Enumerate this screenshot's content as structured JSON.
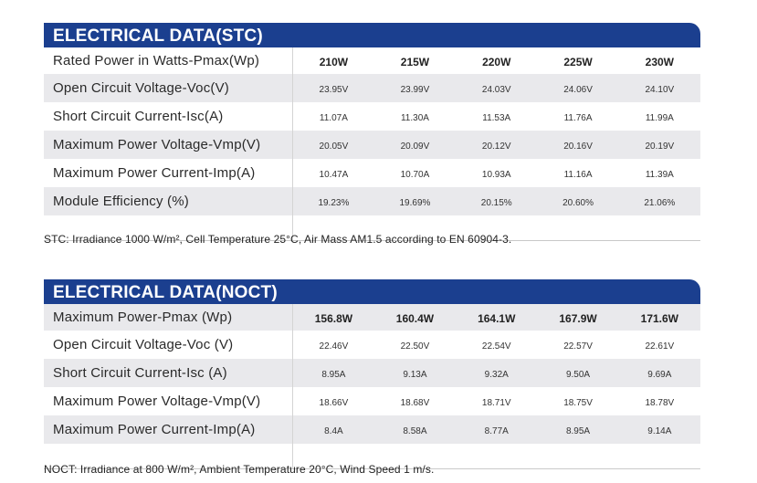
{
  "stc": {
    "title": "ELECTRICAL DATA(STC)",
    "headers": [
      "210W",
      "215W",
      "220W",
      "225W",
      "230W"
    ],
    "header_label": "Rated Power in Watts-Pmax(Wp)",
    "rows": [
      {
        "label": "Open Circuit Voltage-Voc(V)",
        "values": [
          "23.95V",
          "23.99V",
          "24.03V",
          "24.06V",
          "24.10V"
        ]
      },
      {
        "label": "Short Circuit Current-Isc(A)",
        "values": [
          "11.07A",
          "11.30A",
          "11.53A",
          "11.76A",
          "11.99A"
        ]
      },
      {
        "label": "Maximum Power Voltage-Vmp(V)",
        "values": [
          "20.05V",
          "20.09V",
          "20.12V",
          "20.16V",
          "20.19V"
        ]
      },
      {
        "label": "Maximum Power Current-Imp(A)",
        "values": [
          "10.47A",
          "10.70A",
          "10.93A",
          "11.16A",
          "11.39A"
        ]
      },
      {
        "label": "Module Efficiency (%)",
        "values": [
          "19.23%",
          "19.69%",
          "20.15%",
          "20.60%",
          "21.06%"
        ]
      }
    ],
    "note": "STC: Irradiance 1000 W/m², Cell Temperature 25°C, Air Mass AM1.5 according to EN 60904-3."
  },
  "noct": {
    "title": "ELECTRICAL DATA(NOCT)",
    "headers": [
      "156.8W",
      "160.4W",
      "164.1W",
      "167.9W",
      "171.6W"
    ],
    "header_label": "Maximum Power-Pmax (Wp)",
    "rows": [
      {
        "label": "Open Circuit Voltage-Voc (V)",
        "values": [
          "22.46V",
          "22.50V",
          "22.54V",
          "22.57V",
          "22.61V"
        ]
      },
      {
        "label": "Short Circuit Current-Isc (A)",
        "values": [
          "8.95A",
          "9.13A",
          "9.32A",
          "9.50A",
          "9.69A"
        ]
      },
      {
        "label": "Maximum Power Voltage-Vmp(V)",
        "values": [
          "18.66V",
          "18.68V",
          "18.71V",
          "18.75V",
          "18.78V"
        ]
      },
      {
        "label": "Maximum Power Current-Imp(A)",
        "values": [
          "8.4A",
          "8.58A",
          "8.77A",
          "8.95A",
          "9.14A"
        ]
      }
    ],
    "note": "NOCT: Irradiance at 800 W/m², Ambient Temperature 20°C, Wind Speed 1 m/s."
  },
  "colors": {
    "header_bg": "#1b3f8f",
    "row_shade": "#e9e9ec"
  }
}
